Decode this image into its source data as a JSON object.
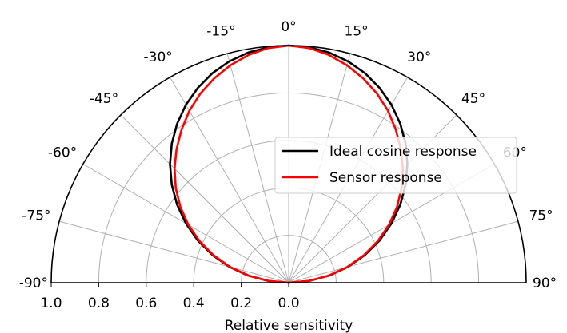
{
  "chart_data": {
    "type": "line",
    "projection": "polar-half",
    "theta_direction": "clockwise-from-top",
    "theta_range": [
      -90,
      90
    ],
    "angle_ticks": [
      -90,
      -75,
      -60,
      -45,
      -30,
      -15,
      0,
      15,
      30,
      45,
      60,
      75,
      90
    ],
    "angle_tick_labels": [
      "-90°",
      "-75°",
      "-60°",
      "-45°",
      "-30°",
      "-15°",
      "0°",
      "15°",
      "30°",
      "45°",
      "60°",
      "75°",
      "90°"
    ],
    "radius_range": [
      0,
      1.0
    ],
    "radius_ticks": [
      1.0,
      0.8,
      0.6,
      0.4,
      0.2,
      0.0
    ],
    "radius_tick_labels": [
      "1.0",
      "0.8",
      "0.6",
      "0.4",
      "0.2",
      "0.0"
    ],
    "xlabel": "Relative sensitivity",
    "grid": true,
    "legend_position": "right",
    "series": [
      {
        "name": "Ideal cosine response",
        "color": "#000000",
        "theta": [
          -90,
          -85,
          -80,
          -75,
          -70,
          -65,
          -60,
          -55,
          -50,
          -45,
          -40,
          -35,
          -30,
          -25,
          -20,
          -15,
          -10,
          -5,
          0,
          5,
          10,
          15,
          20,
          25,
          30,
          35,
          40,
          45,
          50,
          55,
          60,
          65,
          70,
          75,
          80,
          85,
          90
        ],
        "r": [
          0.0,
          0.087,
          0.174,
          0.259,
          0.342,
          0.423,
          0.5,
          0.574,
          0.643,
          0.707,
          0.766,
          0.819,
          0.866,
          0.906,
          0.94,
          0.966,
          0.985,
          0.996,
          1.0,
          0.996,
          0.985,
          0.966,
          0.94,
          0.906,
          0.866,
          0.819,
          0.766,
          0.707,
          0.643,
          0.574,
          0.5,
          0.423,
          0.342,
          0.259,
          0.174,
          0.087,
          0.0
        ]
      },
      {
        "name": "Sensor response",
        "color": "#ff0000",
        "theta": [
          -90,
          -85,
          -80,
          -75,
          -70,
          -65,
          -60,
          -55,
          -50,
          -45,
          -40,
          -35,
          -30,
          -25,
          -20,
          -15,
          -10,
          -5,
          0,
          5,
          10,
          15,
          20,
          25,
          30,
          35,
          40,
          45,
          50,
          55,
          60,
          65,
          70,
          75,
          80,
          85,
          90
        ],
        "r": [
          0.0,
          0.085,
          0.17,
          0.255,
          0.336,
          0.414,
          0.488,
          0.557,
          0.621,
          0.68,
          0.735,
          0.787,
          0.837,
          0.88,
          0.917,
          0.949,
          0.975,
          0.993,
          1.0,
          0.993,
          0.975,
          0.949,
          0.917,
          0.88,
          0.837,
          0.787,
          0.735,
          0.68,
          0.621,
          0.557,
          0.488,
          0.414,
          0.336,
          0.255,
          0.17,
          0.085,
          0.0
        ]
      }
    ]
  }
}
